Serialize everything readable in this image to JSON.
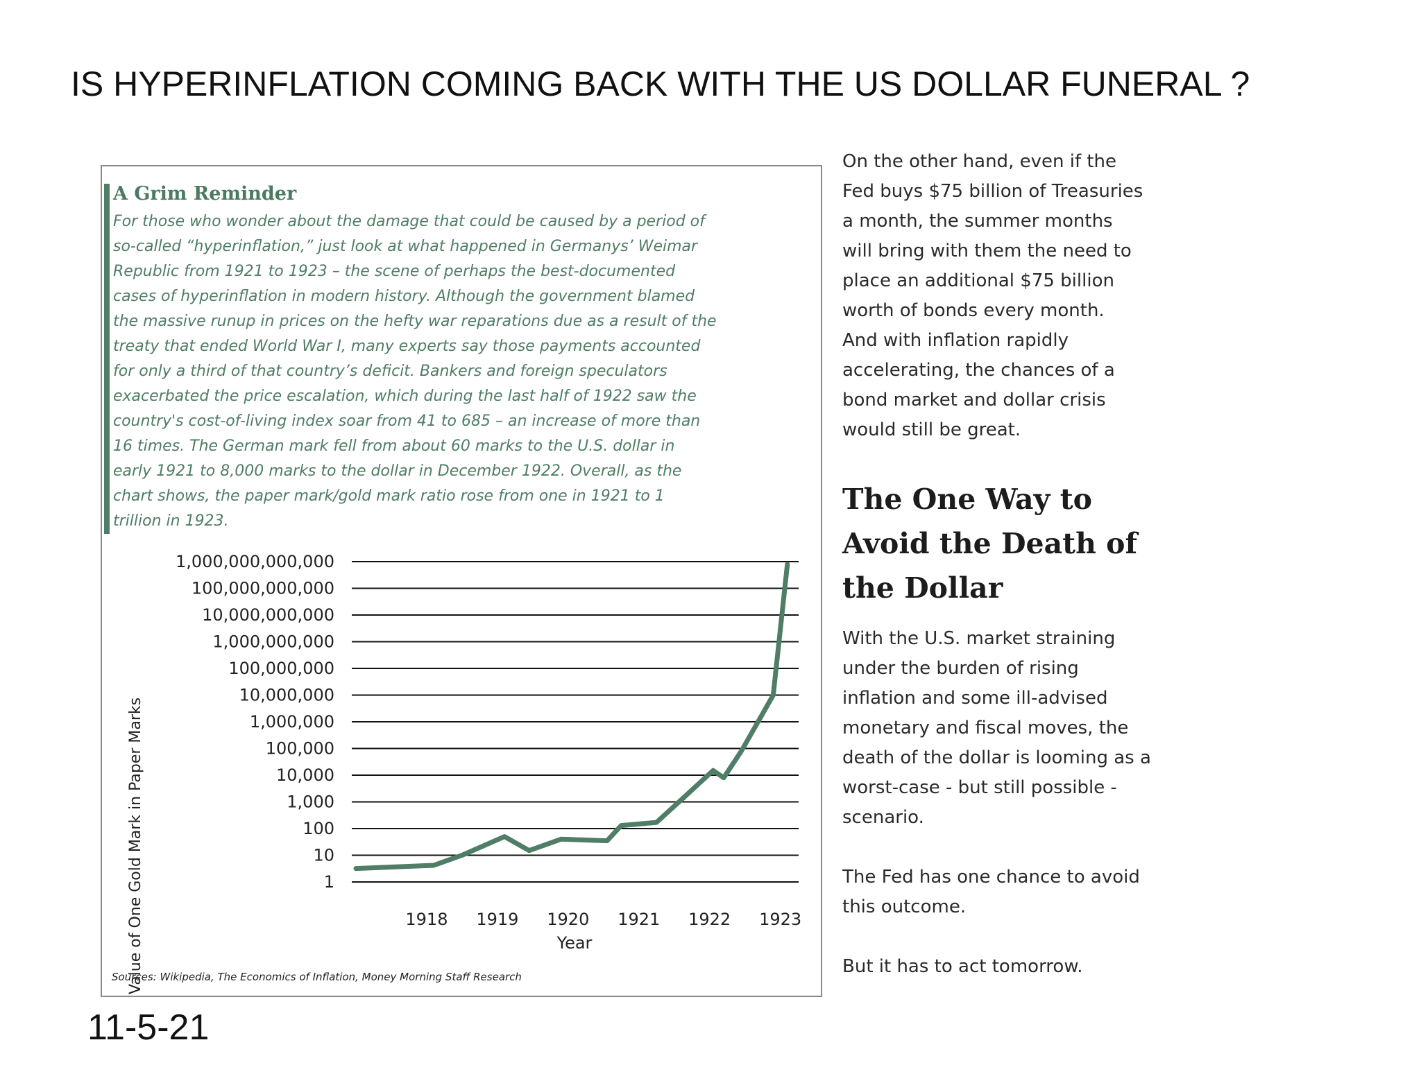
{
  "slide": {
    "title": "IS HYPERINFLATION COMING BACK WITH THE US DOLLAR FUNERAL ?",
    "date": "11-5-21"
  },
  "panel": {
    "heading": "A Grim Reminder",
    "body": "For those who wonder about the damage that could be caused by a period of\nso-called “hyperinflation,” just look at what happened in Germanys’ Weimar\nRepublic from 1921 to 1923 – the scene of perhaps the best-documented\ncases of hyperinflation in modern history. Although the government blamed\nthe massive runup in prices on the hefty war reparations due as a result of the\ntreaty that ended World War I, many experts say those payments accounted\nfor only a third of that country’s deficit. Bankers and foreign speculators\nexacerbated the price escalation, which during the last half of 1922 saw the\ncountry's cost-of-living index soar from 41 to 685 – an increase of more than\n16 times. The German mark fell from about 60 marks to the U.S. dollar in\nearly 1921 to 8,000 marks to the dollar in December 1922. Overall, as the\nchart shows, the paper mark/gold mark ratio rose from one in 1921 to 1\ntrillion in 1923.",
    "source": "Sources: Wikipedia, The Economics of Inflation, Money Morning Staff Research"
  },
  "side": {
    "para1": "On the other hand, even if the\nFed buys $75 billion of Treasuries\na month, the summer months\nwill bring with them the need to\nplace an additional $75 billion\nworth of bonds every month.\nAnd with inflation rapidly\naccelerating, the chances of a\nbond market and dollar crisis\nwould still be great.",
    "heading": "The One Way to\nAvoid the Death of\nthe Dollar",
    "para2": "With the U.S. market straining\nunder the burden of rising\ninflation and some ill-advised\nmonetary and fiscal moves, the\ndeath of the dollar is looming as a\nworst-case - but still possible -\nscenario.",
    "para3": "The Fed has one chance to avoid\nthis outcome.",
    "para4": "But it has to act tomorrow."
  },
  "chart_data": {
    "type": "line",
    "title": "",
    "xlabel": "Year",
    "ylabel": "Value of One Gold Mark in Paper Marks",
    "y_scale": "log10",
    "ylim": [
      1,
      1000000000000
    ],
    "xlim": [
      1917.5,
      1923.7
    ],
    "x_ticks": [
      "1918",
      "1919",
      "1920",
      "1921",
      "1922",
      "1923"
    ],
    "y_ticks": [
      "1",
      "10",
      "100",
      "1,000",
      "10,000",
      "100,000",
      "1,000,000",
      "10,000,000",
      "100,000,000",
      "1,000,000,000",
      "10,000,000,000",
      "100,000,000,000",
      "1,000,000,000,000"
    ],
    "grid": true,
    "legend": "none",
    "color": "#4f7d65",
    "series": [
      {
        "x": [
          1917.5,
          1918.6,
          1919.0,
          1919.6,
          1919.95,
          1920.4,
          1921.05,
          1921.25,
          1921.75,
          1922.1,
          1922.55,
          1922.7,
          1922.95,
          1923.4,
          1923.6
        ],
        "values": [
          3.2,
          4.2,
          10,
          50,
          15,
          40,
          35,
          130,
          170,
          1200,
          15000,
          8000,
          80000,
          10000000,
          800000000000
        ]
      }
    ]
  }
}
